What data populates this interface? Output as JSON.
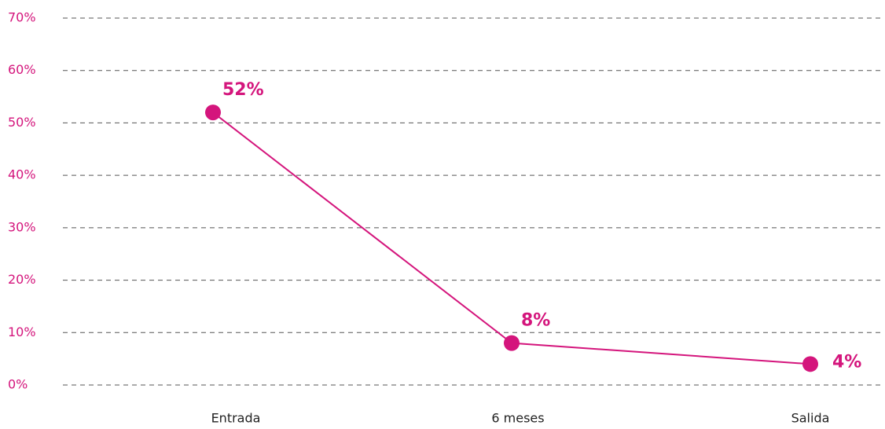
{
  "chart_data": {
    "type": "line",
    "categories": [
      "Entrada",
      "6 meses",
      "Salida"
    ],
    "series": [
      {
        "color": "#d4157c",
        "values": [
          52,
          8,
          4
        ],
        "value_labels": [
          "52%",
          "8%",
          "4%"
        ]
      }
    ],
    "ylim": [
      0,
      70
    ],
    "yticks": [
      {
        "value": 0,
        "label": "0%"
      },
      {
        "value": 10,
        "label": "10%"
      },
      {
        "value": 20,
        "label": "20%"
      },
      {
        "value": 30,
        "label": "30%"
      },
      {
        "value": 40,
        "label": "40%"
      },
      {
        "value": 50,
        "label": "50%"
      },
      {
        "value": 60,
        "label": "60%"
      },
      {
        "value": 70,
        "label": "70%"
      }
    ],
    "grid": true
  }
}
